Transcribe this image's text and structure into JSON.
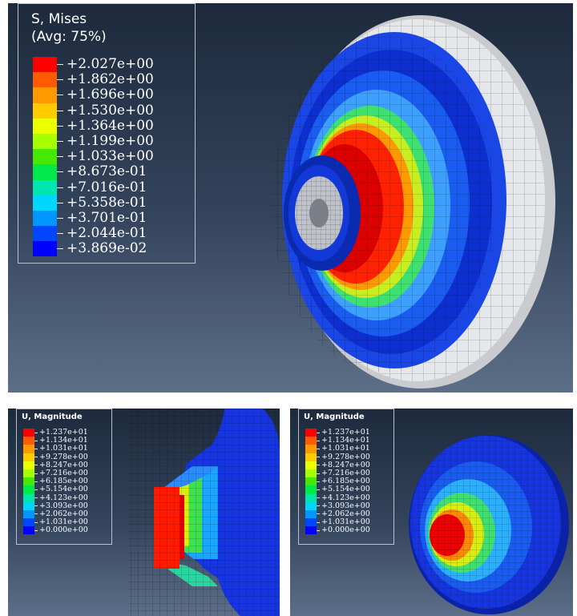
{
  "top_plot": {
    "legend_title": "S, Mises\n(Avg: 75%)",
    "legend_values": [
      "+2.027e+00",
      "+1.862e+00",
      "+1.696e+00",
      "+1.530e+00",
      "+1.364e+00",
      "+1.199e+00",
      "+1.033e+00",
      "+8.673e-01",
      "+7.016e-01",
      "+5.358e-01",
      "+3.701e-01",
      "+2.044e-01",
      "+3.869e-02"
    ]
  },
  "bottom_left_plot": {
    "legend_title": "U, Magnitude",
    "legend_values": [
      "+1.237e+01",
      "+1.134e+01",
      "+1.031e+01",
      "+9.278e+00",
      "+8.247e+00",
      "+7.216e+00",
      "+6.185e+00",
      "+5.154e+00",
      "+4.123e+00",
      "+3.093e+00",
      "+2.062e+00",
      "+1.031e+00",
      "+0.000e+00"
    ]
  },
  "bottom_right_plot": {
    "legend_title": "U, Magnitude",
    "legend_values": [
      "+1.237e+01",
      "+1.134e+01",
      "+1.031e+01",
      "+9.278e+00",
      "+8.247e+00",
      "+7.216e+00",
      "+6.185e+00",
      "+5.154e+00",
      "+4.123e+00",
      "+3.093e+00",
      "+2.062e+00",
      "+1.031e+00",
      "+0.000e+00"
    ]
  },
  "colors": {
    "contour_scale": [
      "#ff0000",
      "#ff5a00",
      "#ff9900",
      "#ffcc00",
      "#eaff00",
      "#a6ff00",
      "#46e800",
      "#00e84a",
      "#00e6b0",
      "#00d6ff",
      "#0096ff",
      "#0046ff",
      "#0000ff"
    ],
    "background_top": "#1d2a3d",
    "background_bottom": "#5d6f88"
  }
}
